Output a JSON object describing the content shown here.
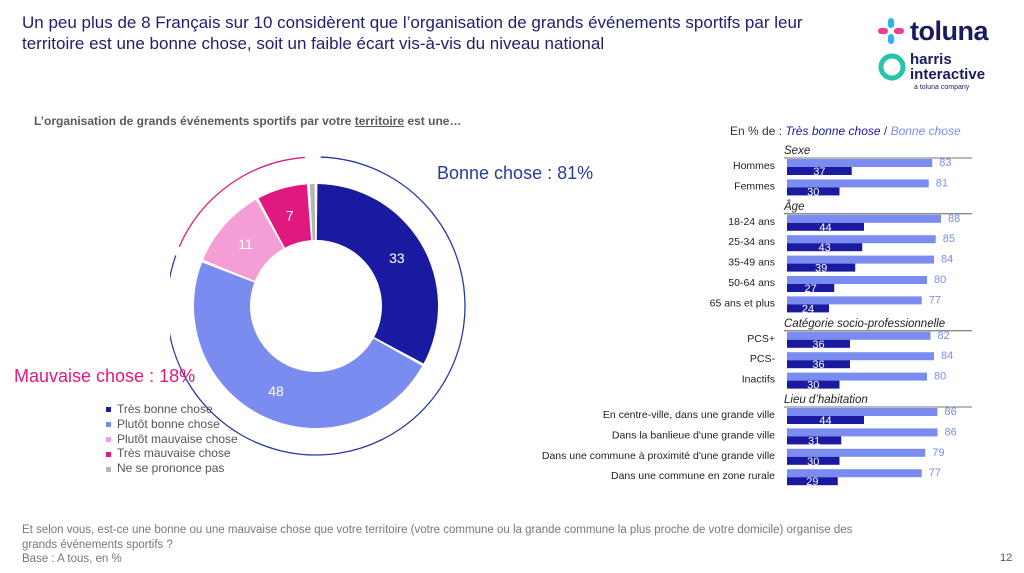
{
  "header": {
    "title": "Un peu plus de 8 Français sur 10 considèrent que l’organisation de grands événements sportifs par leur territoire est une bonne chose, soit un faible écart vis-à-vis du niveau national"
  },
  "logo": {
    "brand": "toluna",
    "sub1": "harris",
    "sub2": "interactive",
    "tagline": "a toluna company"
  },
  "question_title": {
    "before": "L’organisation de grands événements sportifs par votre ",
    "underlined": "territoire",
    "after": " est une…"
  },
  "donut_labels": {
    "bonne": "Bonne chose : 81%",
    "mauvaise": "Mauvaise chose : 18%"
  },
  "bars_header": {
    "prefix": "En % de : ",
    "v1": "Très bonne chose",
    "sep": " / ",
    "v2": "Bonne chose"
  },
  "footer": {
    "question": "Et selon vous, est-ce une bonne ou une mauvaise chose que votre territoire (votre commune ou la grande commune la plus proche de votre domicile) organise des grands événements sportifs ?",
    "base": "Base : A tous, en %"
  },
  "page_number": "12",
  "colors": {
    "tres_bonne": "#1a1aa0",
    "plutot_bonne": "#7b8cf0",
    "plutot_mauvaise": "#f59ed6",
    "tres_mauvaise": "#e0197e",
    "nsp": "#b5b5b5"
  },
  "chart_data": [
    {
      "type": "pie",
      "variant": "donut",
      "categories": [
        "Très bonne chose",
        "Plutôt bonne chose",
        "Plutôt mauvaise chose",
        "Très mauvaise chose",
        "Ne se prononce pas"
      ],
      "values": [
        33,
        48,
        11,
        7,
        1
      ],
      "labels": [
        "33",
        "48",
        "11",
        "7",
        ""
      ],
      "colors": [
        "#1a1aa0",
        "#7b8cf0",
        "#f59ed6",
        "#e0197e",
        "#b5b5b5"
      ],
      "legend": "bottom-left"
    },
    {
      "type": "bar",
      "orientation": "horizontal",
      "series": [
        {
          "name": "Très bonne chose",
          "color": "#1a1aa0"
        },
        {
          "name": "Bonne chose",
          "color": "#7b8cf0"
        }
      ],
      "groups": [
        {
          "title": "Sexe",
          "rows": [
            {
              "label": "Hommes",
              "tres": 37,
              "bonne": 83
            },
            {
              "label": "Femmes",
              "tres": 30,
              "bonne": 81
            }
          ]
        },
        {
          "title": "Âge",
          "rows": [
            {
              "label": "18-24 ans",
              "tres": 44,
              "bonne": 88
            },
            {
              "label": "25-34 ans",
              "tres": 43,
              "bonne": 85
            },
            {
              "label": "35-49 ans",
              "tres": 39,
              "bonne": 84
            },
            {
              "label": "50-64 ans",
              "tres": 27,
              "bonne": 80
            },
            {
              "label": "65 ans et plus",
              "tres": 24,
              "bonne": 77
            }
          ]
        },
        {
          "title": "Catégorie socio-professionnelle",
          "rows": [
            {
              "label": "PCS+",
              "tres": 36,
              "bonne": 82
            },
            {
              "label": "PCS-",
              "tres": 36,
              "bonne": 84
            },
            {
              "label": "Inactifs",
              "tres": 30,
              "bonne": 80
            }
          ]
        },
        {
          "title": "Lieu d’habitation",
          "rows": [
            {
              "label": "En centre-ville, dans une grande ville",
              "tres": 44,
              "bonne": 86
            },
            {
              "label": "Dans la banlieue d'une grande ville",
              "tres": 31,
              "bonne": 86
            },
            {
              "label": "Dans une commune à proximité d'une grande ville",
              "tres": 30,
              "bonne": 79
            },
            {
              "label": "Dans une commune en zone rurale",
              "tres": 29,
              "bonne": 77
            }
          ]
        }
      ]
    }
  ]
}
